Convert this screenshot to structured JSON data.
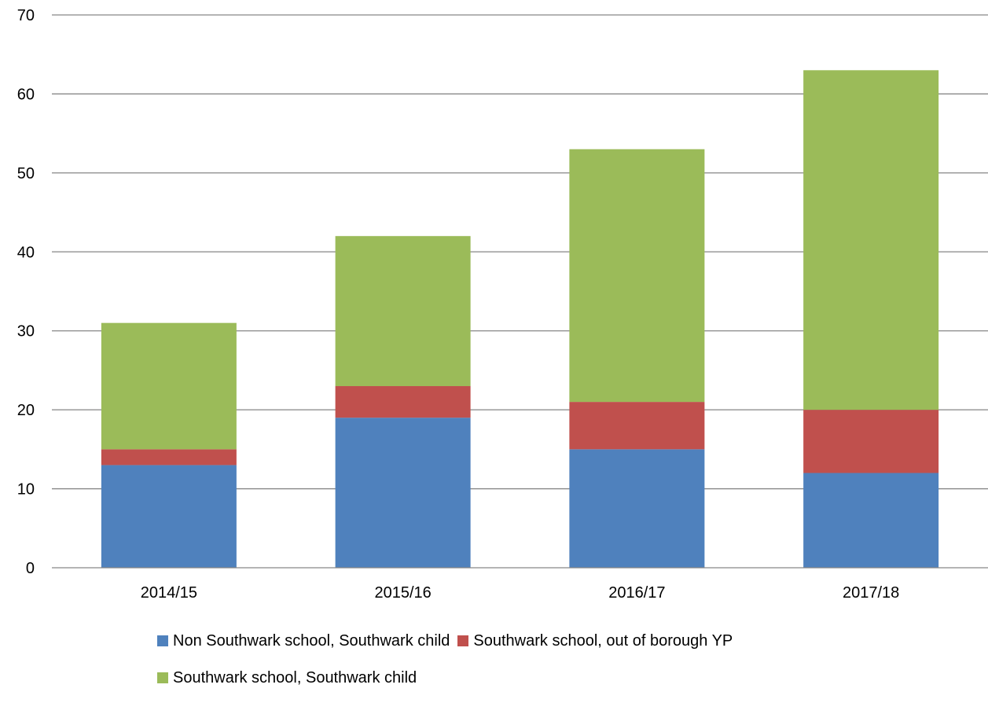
{
  "chart_data": {
    "type": "bar",
    "stacked": true,
    "title": "",
    "xlabel": "",
    "ylabel": "",
    "ylim": [
      0,
      70
    ],
    "yticks": [
      0,
      10,
      20,
      30,
      40,
      50,
      60,
      70
    ],
    "grid": true,
    "legend_position": "bottom",
    "categories": [
      "2014/15",
      "2015/16",
      "2016/17",
      "2017/18"
    ],
    "series": [
      {
        "name": "Non Southwark school, Southwark child",
        "color": "#4F81BD",
        "values": [
          13,
          19,
          15,
          12
        ]
      },
      {
        "name": "Southwark school, out of borough YP",
        "color": "#C0504D",
        "values": [
          2,
          4,
          6,
          8
        ]
      },
      {
        "name": "Southwark school, Southwark child",
        "color": "#9BBB59",
        "values": [
          16,
          19,
          32,
          43
        ]
      }
    ]
  }
}
